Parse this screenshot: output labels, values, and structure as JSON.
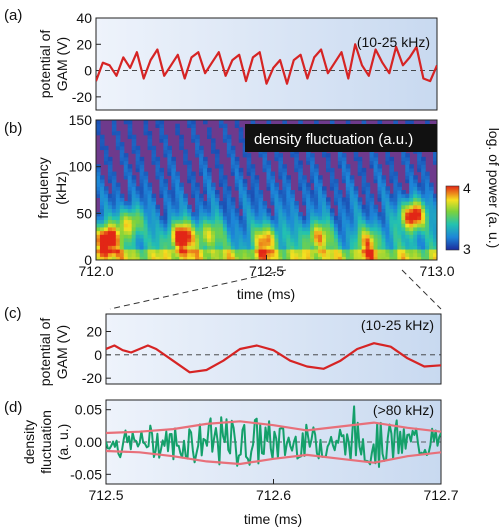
{
  "chart_data": [
    {
      "panel_label": "(a)",
      "type": "line",
      "ylabel_lines": [
        "potential of",
        "GAM (V)"
      ],
      "annotation": "(10-25 kHz)",
      "ylim": [
        -30,
        40
      ],
      "yticks": [
        40,
        20,
        0,
        -20
      ],
      "xlim": [
        712.0,
        713.0
      ],
      "baseline": 0,
      "series": [
        {
          "color": "#d62424",
          "x": [
            712.0,
            712.02,
            712.04,
            712.06,
            712.08,
            712.1,
            712.12,
            712.14,
            712.16,
            712.18,
            712.2,
            712.22,
            712.24,
            712.26,
            712.28,
            712.3,
            712.32,
            712.34,
            712.36,
            712.38,
            712.4,
            712.42,
            712.44,
            712.46,
            712.48,
            712.5,
            712.52,
            712.54,
            712.56,
            712.58,
            712.6,
            712.62,
            712.64,
            712.66,
            712.68,
            712.7,
            712.72,
            712.74,
            712.76,
            712.78,
            712.8,
            712.82,
            712.84,
            712.86,
            712.88,
            712.9,
            712.92,
            712.94,
            712.96,
            712.98,
            713.0
          ],
          "y": [
            -8,
            6,
            4,
            -4,
            10,
            2,
            14,
            -6,
            8,
            16,
            -4,
            4,
            12,
            -6,
            10,
            14,
            -2,
            6,
            14,
            -4,
            8,
            12,
            -8,
            10,
            14,
            -10,
            2,
            8,
            -10,
            8,
            12,
            -6,
            10,
            16,
            -2,
            6,
            14,
            -6,
            20,
            4,
            -4,
            16,
            6,
            -2,
            18,
            4,
            10,
            18,
            -6,
            -8,
            4
          ]
        }
      ]
    },
    {
      "panel_label": "(b)",
      "type": "heatmap",
      "ylabel": "frequency\n(kHz)",
      "xlabel": "time (ms)",
      "annotation": "density fluctuation (a.u.)",
      "xlim": [
        712.0,
        713.0
      ],
      "ylim": [
        0,
        150
      ],
      "xticks": [
        "712.0",
        "712.5",
        "713.0"
      ],
      "yticks": [
        150,
        100,
        50,
        0
      ],
      "colorbar": {
        "label": "log. of power (a. u.)",
        "ticks": [
          4,
          3
        ]
      },
      "hotspots": [
        {
          "t": 712.03,
          "f": 22,
          "level": 4.0
        },
        {
          "t": 712.1,
          "f": 40,
          "level": 3.6
        },
        {
          "t": 712.25,
          "f": 25,
          "level": 3.9
        },
        {
          "t": 712.33,
          "f": 28,
          "level": 3.5
        },
        {
          "t": 712.5,
          "f": 22,
          "level": 3.6
        },
        {
          "t": 712.65,
          "f": 25,
          "level": 3.6
        },
        {
          "t": 712.8,
          "f": 20,
          "level": 3.5
        },
        {
          "t": 712.93,
          "f": 48,
          "level": 4.0
        }
      ]
    },
    {
      "panel_label": "(c)",
      "type": "line",
      "ylabel_lines": [
        "potential of",
        "GAM (V)"
      ],
      "annotation": "(10-25 kHz)",
      "ylim": [
        -25,
        35
      ],
      "yticks": [
        20,
        0,
        -20
      ],
      "xlim": [
        712.5,
        712.7
      ],
      "baseline": 0,
      "series": [
        {
          "color": "#d62424",
          "x": [
            712.5,
            712.505,
            712.51,
            712.515,
            712.52,
            712.525,
            712.53,
            712.54,
            712.55,
            712.56,
            712.57,
            712.58,
            712.59,
            712.6,
            712.61,
            712.62,
            712.63,
            712.64,
            712.65,
            712.66,
            712.67,
            712.68,
            712.69,
            712.7
          ],
          "y": [
            5,
            8,
            4,
            2,
            5,
            8,
            5,
            -5,
            -15,
            -13,
            -5,
            5,
            8,
            4,
            -5,
            -10,
            -12,
            -5,
            5,
            10,
            7,
            -3,
            -10,
            -9
          ]
        }
      ]
    },
    {
      "panel_label": "(d)",
      "type": "line",
      "ylabel_lines": [
        "density",
        "fluctuation",
        "(a. u.)"
      ],
      "xlabel": "time (ms)",
      "annotation": "(>80 kHz)",
      "ylim": [
        -0.065,
        0.065
      ],
      "yticks": [
        "0.05",
        "0.00",
        "-0.05"
      ],
      "xticks": [
        "712.5",
        "712.6",
        "712.7"
      ],
      "xlim": [
        712.5,
        712.7
      ],
      "baseline": 0,
      "envelope": {
        "color": "#e8707a",
        "x": [
          712.5,
          712.52,
          712.54,
          712.56,
          712.58,
          712.6,
          712.62,
          712.64,
          712.66,
          712.68,
          712.7
        ],
        "upper": [
          0.014,
          0.016,
          0.02,
          0.028,
          0.032,
          0.026,
          0.018,
          0.024,
          0.03,
          0.022,
          0.016
        ],
        "lower": [
          -0.014,
          -0.016,
          -0.022,
          -0.03,
          -0.034,
          -0.026,
          -0.02,
          -0.026,
          -0.032,
          -0.022,
          -0.016
        ]
      },
      "series": [
        {
          "color": "#14a06a",
          "amplitude": 0.03,
          "seed": 7,
          "points": 190
        }
      ]
    }
  ]
}
